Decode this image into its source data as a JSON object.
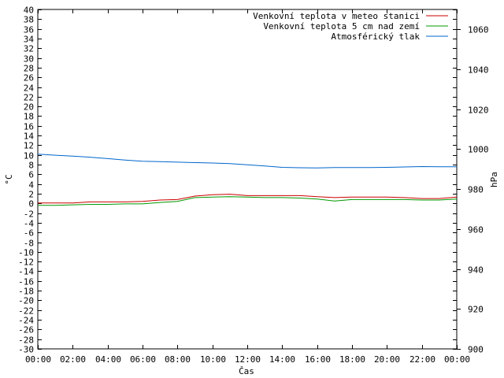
{
  "chart_data": {
    "type": "line",
    "title": "",
    "xlabel": "Čas",
    "ylabel": "°C",
    "y2label": "hPa",
    "ylim": [
      -30,
      40
    ],
    "y2lim": [
      900,
      1070
    ],
    "y_ticks": [
      40,
      38,
      36,
      34,
      32,
      30,
      28,
      26,
      24,
      22,
      20,
      18,
      16,
      14,
      12,
      10,
      8,
      6,
      4,
      2,
      0,
      -2,
      -4,
      -6,
      -8,
      -10,
      -12,
      -14,
      -16,
      -18,
      -20,
      -22,
      -24,
      -26,
      -28,
      -30
    ],
    "y2_ticks": [
      1060,
      1040,
      1020,
      1000,
      980,
      960,
      940,
      920,
      900
    ],
    "x_ticks": [
      "00:00",
      "02:00",
      "04:00",
      "06:00",
      "08:00",
      "10:00",
      "12:00",
      "14:00",
      "16:00",
      "18:00",
      "20:00",
      "22:00",
      "00:00"
    ],
    "xlim_hours": [
      0,
      24
    ],
    "grid": false,
    "legend_position": "top-right",
    "x_hours": [
      0,
      1,
      2,
      3,
      4,
      5,
      6,
      7,
      8,
      9,
      10,
      11,
      12,
      13,
      14,
      15,
      16,
      17,
      18,
      19,
      20,
      21,
      22,
      23,
      24
    ],
    "series": [
      {
        "name": "Venkovní teplota v meteo stanici",
        "axis": "left",
        "color": "#cc0000",
        "values": [
          0.1,
          0.1,
          0.1,
          0.3,
          0.3,
          0.3,
          0.4,
          0.7,
          0.8,
          1.5,
          1.8,
          1.9,
          1.6,
          1.6,
          1.6,
          1.6,
          1.4,
          1.2,
          1.3,
          1.3,
          1.3,
          1.2,
          1.0,
          1.0,
          1.3
        ]
      },
      {
        "name": "Venkovní teplota 5 cm nad zemí",
        "axis": "left",
        "color": "#009900",
        "values": [
          -0.4,
          -0.4,
          -0.3,
          -0.2,
          -0.2,
          -0.1,
          -0.1,
          0.2,
          0.4,
          1.2,
          1.3,
          1.4,
          1.3,
          1.2,
          1.2,
          1.1,
          0.9,
          0.5,
          0.8,
          0.8,
          0.8,
          0.8,
          0.7,
          0.7,
          0.9
        ]
      },
      {
        "name": "Atmosférický tlak",
        "axis": "right",
        "color": "#0066cc",
        "values": [
          997.5,
          997.0,
          996.5,
          996.0,
          995.3,
          994.6,
          994.0,
          993.8,
          993.5,
          993.3,
          993.1,
          992.8,
          992.2,
          991.6,
          990.9,
          990.7,
          990.6,
          990.8,
          990.8,
          990.8,
          990.9,
          991.1,
          991.3,
          991.2,
          991.2
        ]
      }
    ]
  }
}
